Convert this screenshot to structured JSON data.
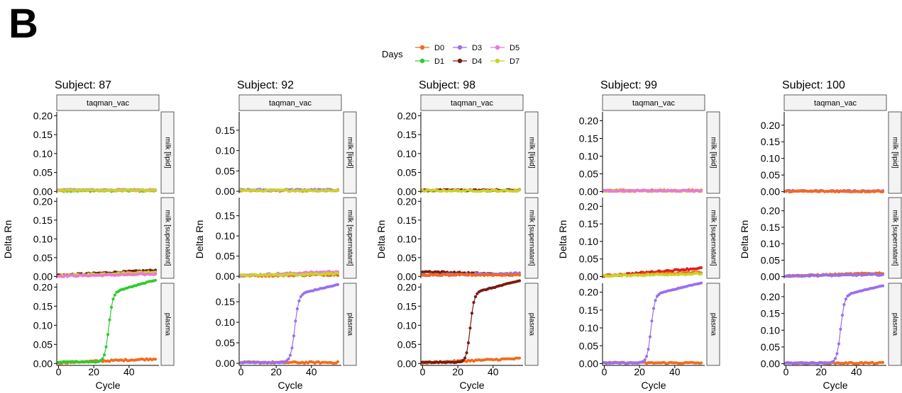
{
  "panel_letter": "B",
  "colors": {
    "D0": "#f26b1d",
    "D1": "#2ecc2e",
    "D3": "#9a6ff0",
    "D4": "#7a1a12",
    "D5": "#e87ad8",
    "D7": "#c8d42a",
    "red": "#e0201a"
  },
  "chart_data": {
    "type": "line",
    "legend": {
      "title": "Days",
      "placement": "top-center",
      "entries": [
        "D0",
        "D1",
        "D3",
        "D4",
        "D5",
        "D7"
      ]
    },
    "strip_label": "taqman_vac",
    "row_labels": [
      "milk [lipid]",
      "milk [supernatant]",
      "plasma"
    ],
    "xlabel": "Cycle",
    "ylabel": "Delta Rn",
    "x_ticks": [
      0,
      20,
      40
    ],
    "xlim": [
      -1,
      57
    ],
    "cycles": 55,
    "subjects": [
      {
        "title": "Subject: 87",
        "ylim": [
          -0.005,
          0.21
        ],
        "y_ticks": [
          "0.00",
          "0.05",
          "0.10",
          "0.15",
          "0.20"
        ],
        "rows": [
          {
            "series": [
              {
                "name": "D0",
                "kind": "flat",
                "level": 0.003
              },
              {
                "name": "D1",
                "kind": "flat",
                "level": 0.002
              },
              {
                "name": "D5",
                "kind": "flat",
                "level": 0.004
              },
              {
                "name": "D7",
                "kind": "flat",
                "level": 0.003
              }
            ]
          },
          {
            "series": [
              {
                "name": "D0",
                "kind": "linear",
                "start": 0.002,
                "end": 0.008
              },
              {
                "name": "D4",
                "kind": "linear",
                "start": 0.003,
                "end": 0.016
              },
              {
                "name": "D7",
                "kind": "linear",
                "start": 0.002,
                "end": 0.012
              },
              {
                "name": "D5",
                "kind": "linear",
                "start": 0.001,
                "end": 0.006
              }
            ]
          },
          {
            "series": [
              {
                "name": "D0",
                "kind": "linear",
                "start": 0.002,
                "end": 0.012
              },
              {
                "name": "D1",
                "kind": "sigmoid",
                "base": 0.004,
                "plateau": 0.18,
                "ct": 28.5,
                "k": 0.85,
                "slope": 0.0013
              }
            ]
          }
        ]
      },
      {
        "title": "Subject: 92",
        "ylim": [
          -0.005,
          0.195
        ],
        "y_ticks": [
          "0.00",
          "0.05",
          "0.10",
          "0.15"
        ],
        "rows": [
          {
            "series": [
              {
                "name": "D0",
                "kind": "flat",
                "level": 0.002
              },
              {
                "name": "D3",
                "kind": "flat",
                "level": 0.003
              },
              {
                "name": "D7",
                "kind": "flat",
                "level": 0.002
              }
            ]
          },
          {
            "series": [
              {
                "name": "D0",
                "kind": "linear",
                "start": 0.001,
                "end": 0.004
              },
              {
                "name": "D5",
                "kind": "linear",
                "start": 0.002,
                "end": 0.012
              },
              {
                "name": "D7",
                "kind": "linear",
                "start": 0.002,
                "end": 0.007
              }
            ]
          },
          {
            "series": [
              {
                "name": "D0",
                "kind": "flat",
                "level": 0.002
              },
              {
                "name": "D3",
                "kind": "sigmoid",
                "base": 0.002,
                "plateau": 0.165,
                "ct": 30.5,
                "k": 0.85,
                "slope": 0.001
              }
            ]
          }
        ]
      },
      {
        "title": "Subject: 98",
        "ylim": [
          -0.005,
          0.21
        ],
        "y_ticks": [
          "0.00",
          "0.05",
          "0.10",
          "0.15",
          "0.20"
        ],
        "rows": [
          {
            "series": [
              {
                "name": "D0",
                "kind": "flat",
                "level": 0.003
              },
              {
                "name": "D4",
                "kind": "flat",
                "level": 0.003
              },
              {
                "name": "D7",
                "kind": "flat",
                "level": 0.002
              }
            ]
          },
          {
            "series": [
              {
                "name": "D4",
                "kind": "linear",
                "start": 0.013,
                "end": 0.004
              },
              {
                "name": "D3",
                "kind": "linear",
                "start": 0.004,
                "end": 0.008
              },
              {
                "name": "D0",
                "kind": "flat",
                "level": 0.004
              }
            ]
          },
          {
            "series": [
              {
                "name": "D0",
                "kind": "linear",
                "start": 0.002,
                "end": 0.013
              },
              {
                "name": "D4",
                "kind": "sigmoid",
                "base": 0.003,
                "plateau": 0.18,
                "ct": 27.0,
                "k": 0.9,
                "slope": 0.0012
              }
            ]
          }
        ]
      },
      {
        "title": "Subject: 99",
        "ylim": [
          -0.005,
          0.225
        ],
        "y_ticks": [
          "0.00",
          "0.05",
          "0.10",
          "0.15",
          "0.20"
        ],
        "rows": [
          {
            "series": [
              {
                "name": "D0",
                "kind": "flat",
                "level": 0.003
              },
              {
                "name": "D7",
                "kind": "flat",
                "level": 0.002
              },
              {
                "name": "D5",
                "kind": "flat",
                "level": 0.002
              }
            ]
          },
          {
            "series": [
              {
                "name": "red",
                "kind": "linear",
                "start": 0.002,
                "end": 0.024
              },
              {
                "name": "D0",
                "kind": "linear",
                "start": 0.002,
                "end": 0.012
              },
              {
                "name": "D7",
                "kind": "linear",
                "start": 0.002,
                "end": 0.008
              }
            ]
          },
          {
            "series": [
              {
                "name": "D0",
                "kind": "flat",
                "level": 0.002
              },
              {
                "name": "D3",
                "kind": "sigmoid",
                "base": 0.002,
                "plateau": 0.19,
                "ct": 26.5,
                "k": 0.9,
                "slope": 0.0012
              }
            ]
          }
        ]
      },
      {
        "title": "Subject: 100",
        "ylim": [
          -0.005,
          0.24
        ],
        "y_ticks": [
          "0.00",
          "0.05",
          "0.10",
          "0.15",
          "0.20"
        ],
        "rows": [
          {
            "series": [
              {
                "name": "D3",
                "kind": "flat",
                "level": 0.002
              },
              {
                "name": "D0",
                "kind": "flat",
                "level": 0.001
              }
            ]
          },
          {
            "series": [
              {
                "name": "D0",
                "kind": "linear",
                "start": 0.002,
                "end": 0.011
              },
              {
                "name": "D3",
                "kind": "linear",
                "start": 0.002,
                "end": 0.006
              }
            ]
          },
          {
            "series": [
              {
                "name": "D0",
                "kind": "flat",
                "level": 0.002
              },
              {
                "name": "D3",
                "kind": "sigmoid",
                "base": 0.002,
                "plateau": 0.2,
                "ct": 31.0,
                "k": 0.9,
                "slope": 0.0013
              }
            ]
          }
        ]
      }
    ]
  }
}
